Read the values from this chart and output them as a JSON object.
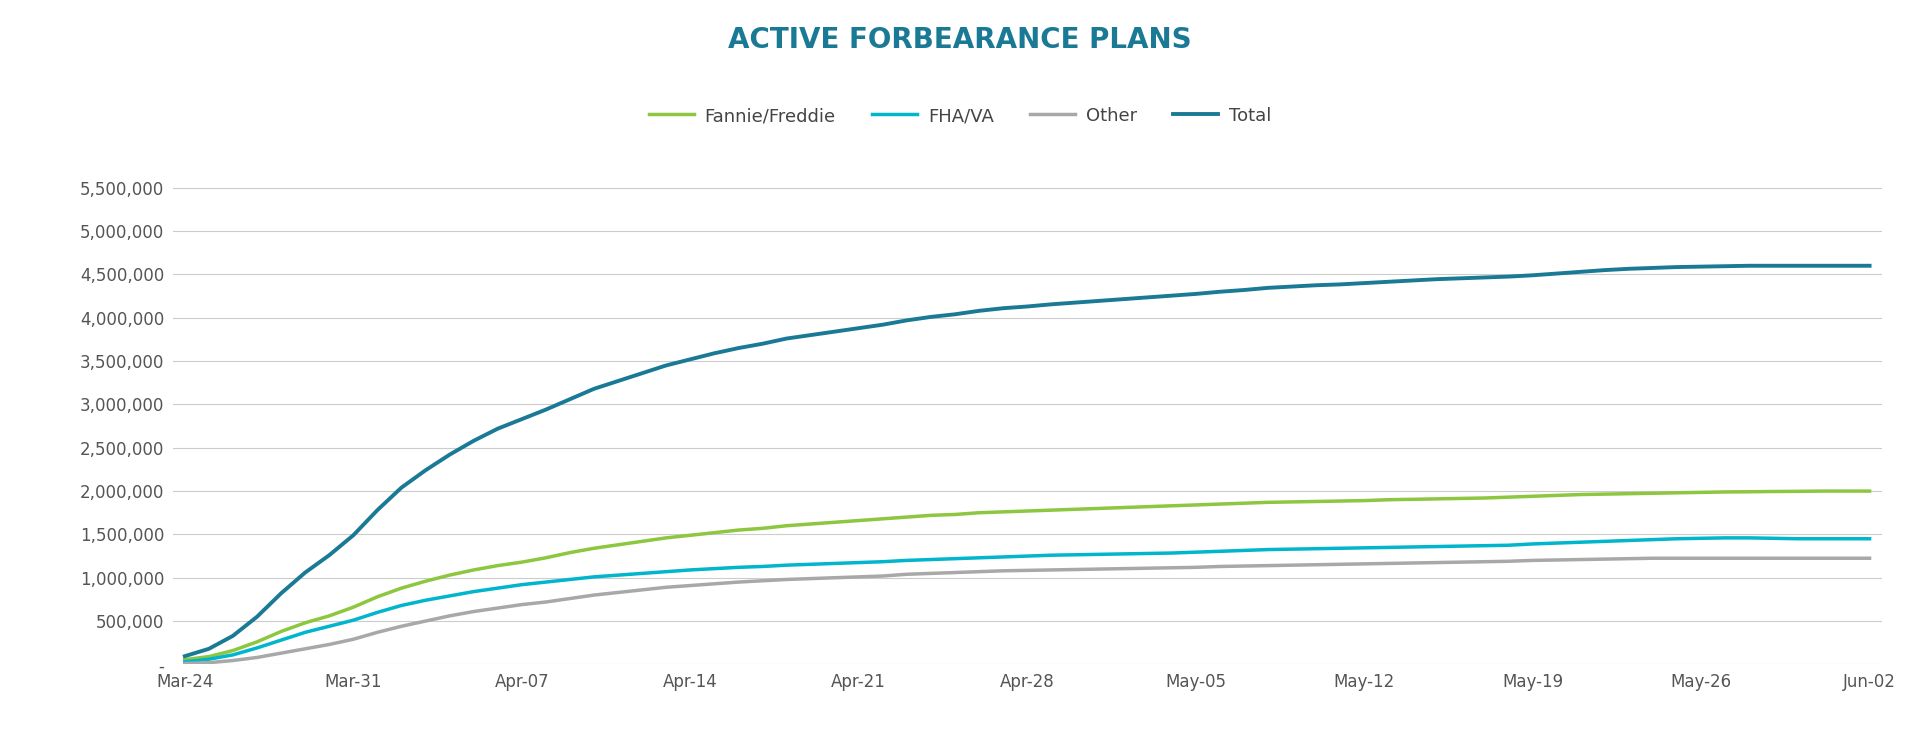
{
  "title": "ACTIVE FORBEARANCE PLANS",
  "title_color": "#1a7a96",
  "background_color": "#ffffff",
  "x_labels": [
    "Mar-24",
    "Mar-31",
    "Apr-07",
    "Apr-14",
    "Apr-21",
    "Apr-28",
    "May-05",
    "May-12",
    "May-19",
    "May-26",
    "Jun-02"
  ],
  "x_tick_positions": [
    0,
    7,
    14,
    21,
    28,
    35,
    42,
    49,
    56,
    63,
    70
  ],
  "fannie_freddie": [
    55000,
    90000,
    160000,
    260000,
    380000,
    480000,
    560000,
    660000,
    780000,
    880000,
    960000,
    1030000,
    1090000,
    1140000,
    1180000,
    1230000,
    1290000,
    1340000,
    1380000,
    1420000,
    1460000,
    1490000,
    1520000,
    1550000,
    1570000,
    1600000,
    1620000,
    1640000,
    1660000,
    1680000,
    1700000,
    1720000,
    1730000,
    1750000,
    1760000,
    1770000,
    1780000,
    1790000,
    1800000,
    1810000,
    1820000,
    1830000,
    1840000,
    1850000,
    1860000,
    1870000,
    1875000,
    1880000,
    1885000,
    1890000,
    1900000,
    1905000,
    1910000,
    1915000,
    1920000,
    1930000,
    1940000,
    1950000,
    1960000,
    1965000,
    1970000,
    1975000,
    1980000,
    1985000,
    1990000,
    1992000,
    1995000,
    1997000,
    2000000,
    2000000,
    2000000
  ],
  "fha_va": [
    30000,
    60000,
    110000,
    190000,
    280000,
    370000,
    440000,
    510000,
    600000,
    680000,
    740000,
    790000,
    840000,
    880000,
    920000,
    950000,
    980000,
    1010000,
    1030000,
    1050000,
    1070000,
    1090000,
    1105000,
    1120000,
    1130000,
    1145000,
    1155000,
    1165000,
    1175000,
    1185000,
    1200000,
    1210000,
    1220000,
    1230000,
    1240000,
    1250000,
    1260000,
    1265000,
    1270000,
    1275000,
    1280000,
    1285000,
    1295000,
    1305000,
    1315000,
    1325000,
    1330000,
    1335000,
    1340000,
    1345000,
    1350000,
    1355000,
    1360000,
    1365000,
    1370000,
    1375000,
    1390000,
    1400000,
    1410000,
    1420000,
    1430000,
    1440000,
    1450000,
    1455000,
    1460000,
    1460000,
    1455000,
    1450000,
    1450000,
    1450000,
    1450000
  ],
  "other": [
    10000,
    20000,
    45000,
    80000,
    130000,
    180000,
    230000,
    290000,
    370000,
    440000,
    500000,
    560000,
    610000,
    650000,
    690000,
    720000,
    760000,
    800000,
    830000,
    860000,
    890000,
    910000,
    930000,
    950000,
    965000,
    980000,
    990000,
    1000000,
    1010000,
    1020000,
    1040000,
    1050000,
    1060000,
    1070000,
    1080000,
    1085000,
    1090000,
    1095000,
    1100000,
    1105000,
    1110000,
    1115000,
    1120000,
    1130000,
    1135000,
    1140000,
    1145000,
    1150000,
    1155000,
    1160000,
    1165000,
    1170000,
    1175000,
    1180000,
    1185000,
    1190000,
    1200000,
    1205000,
    1210000,
    1215000,
    1220000,
    1225000,
    1225000,
    1225000,
    1225000,
    1225000,
    1225000,
    1225000,
    1225000,
    1225000,
    1225000
  ],
  "total": [
    95000,
    180000,
    330000,
    550000,
    820000,
    1060000,
    1260000,
    1490000,
    1780000,
    2040000,
    2240000,
    2420000,
    2580000,
    2720000,
    2830000,
    2940000,
    3060000,
    3180000,
    3270000,
    3360000,
    3450000,
    3520000,
    3590000,
    3650000,
    3700000,
    3760000,
    3800000,
    3840000,
    3880000,
    3920000,
    3970000,
    4010000,
    4040000,
    4080000,
    4110000,
    4130000,
    4155000,
    4175000,
    4195000,
    4215000,
    4235000,
    4255000,
    4275000,
    4300000,
    4320000,
    4345000,
    4360000,
    4375000,
    4385000,
    4400000,
    4415000,
    4430000,
    4445000,
    4455000,
    4465000,
    4475000,
    4490000,
    4510000,
    4530000,
    4550000,
    4565000,
    4575000,
    4585000,
    4590000,
    4595000,
    4600000,
    4600000,
    4600000,
    4600000,
    4600000,
    4600000
  ],
  "fannie_color": "#8dc63f",
  "fha_color": "#00b5cc",
  "other_color": "#a8a8a8",
  "total_color": "#1a7a96",
  "linewidth": 2.5,
  "ylim": [
    0,
    5750000
  ],
  "yticks": [
    0,
    500000,
    1000000,
    1500000,
    2000000,
    2500000,
    3000000,
    3500000,
    4000000,
    4500000,
    5000000,
    5500000
  ],
  "ytick_labels": [
    "-",
    "500,000",
    "1,000,000",
    "1,500,000",
    "2,000,000",
    "2,500,000",
    "3,000,000",
    "3,500,000",
    "4,000,000",
    "4,500,000",
    "5,000,000",
    "5,500,000"
  ],
  "grid_color": "#cccccc",
  "legend_items": [
    "Fannie/Freddie",
    "FHA/VA",
    "Other",
    "Total"
  ],
  "title_fontsize": 20,
  "tick_fontsize": 12
}
